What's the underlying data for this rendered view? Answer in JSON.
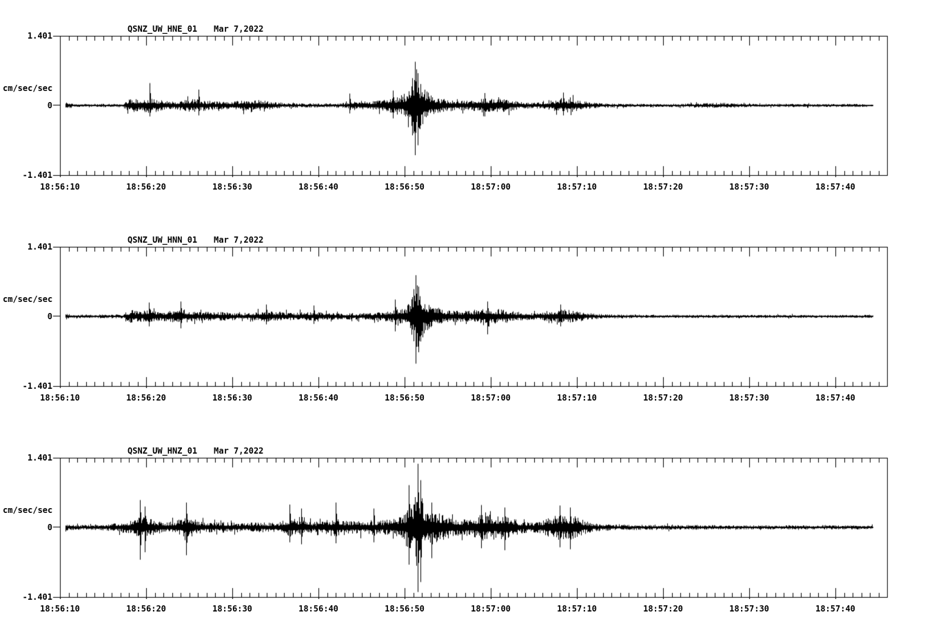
{
  "page": {
    "background_color": "#ffffff",
    "trace_color": "#000000",
    "description": "Three-channel strong-motion seismogram record, station QSNZ (UW network), event of Mar 7,2022 around 18:56:51"
  },
  "chart_data": [
    {
      "type": "line",
      "subtype": "seismogram",
      "station": "QSNZ_UW_HNE_01",
      "date": "Mar 7,2022",
      "title": "QSNZ_UW_HNE_01   Mar 7,2022",
      "y_axis": {
        "max": "1.401",
        "zero": "0",
        "min": "-1.401",
        "unit": "cm/sec/sec",
        "ylim": [
          -1.401,
          1.401
        ]
      },
      "x_axis": {
        "ticks": [
          "18:56:10",
          "18:56:20",
          "18:56:30",
          "18:56:40",
          "18:56:50",
          "18:57:00",
          "18:57:10",
          "18:57:20",
          "18:57:30",
          "18:57:40"
        ],
        "start": "18:56:10",
        "end_approx": "18:57:46",
        "major_tick_interval_s": 10,
        "minor_tick_interval_s": 1
      },
      "main_event": {
        "time": "18:56:51",
        "peak_up": 0.88,
        "peak_down": -1.0
      },
      "seed": 11,
      "envelope_breakpoints": [
        [
          0,
          0.07
        ],
        [
          0.9,
          0.07
        ],
        [
          1.6,
          0.03
        ],
        [
          7.2,
          0.035
        ],
        [
          8,
          0.14
        ],
        [
          9,
          0.13
        ],
        [
          10.3,
          0.16
        ],
        [
          11.5,
          0.12
        ],
        [
          12.6,
          0.1
        ],
        [
          13.6,
          0.09
        ],
        [
          14.6,
          0.12
        ],
        [
          15.8,
          0.13
        ],
        [
          17,
          0.1
        ],
        [
          18.4,
          0.08
        ],
        [
          20,
          0.08
        ],
        [
          21,
          0.11
        ],
        [
          22,
          0.09
        ],
        [
          23,
          0.11
        ],
        [
          24,
          0.09
        ],
        [
          25,
          0.07
        ],
        [
          26,
          0.05
        ],
        [
          28,
          0.042
        ],
        [
          31,
          0.04
        ],
        [
          33,
          0.05
        ],
        [
          34,
          0.07
        ],
        [
          35,
          0.1
        ],
        [
          36,
          0.09
        ],
        [
          37,
          0.11
        ],
        [
          38,
          0.13
        ],
        [
          39,
          0.17
        ],
        [
          40,
          0.24
        ],
        [
          40.8,
          0.42
        ],
        [
          41.2,
          0.8
        ],
        [
          41.7,
          0.5
        ],
        [
          42.3,
          0.32
        ],
        [
          43,
          0.24
        ],
        [
          44,
          0.15
        ],
        [
          45,
          0.12
        ],
        [
          46.2,
          0.1
        ],
        [
          47.5,
          0.1
        ],
        [
          48.5,
          0.13
        ],
        [
          49.5,
          0.16
        ],
        [
          50.5,
          0.14
        ],
        [
          51.5,
          0.14
        ],
        [
          52.3,
          0.11
        ],
        [
          53.2,
          0.08
        ],
        [
          54.5,
          0.06
        ],
        [
          56,
          0.07
        ],
        [
          57,
          0.1
        ],
        [
          58,
          0.15
        ],
        [
          59,
          0.14
        ],
        [
          60.2,
          0.11
        ],
        [
          61.2,
          0.07
        ],
        [
          62.5,
          0.05
        ],
        [
          64,
          0.04
        ],
        [
          66,
          0.035
        ],
        [
          70,
          0.03
        ],
        [
          76,
          0.05
        ],
        [
          77.5,
          0.055
        ],
        [
          79,
          0.038
        ],
        [
          81,
          0.03
        ],
        [
          84.5,
          0.035
        ],
        [
          88,
          0.03
        ],
        [
          91,
          0.032
        ],
        [
          94.3,
          0.03
        ]
      ],
      "spikes": [
        [
          10.4,
          0.45,
          -0.22
        ],
        [
          16.1,
          0.32,
          -0.2
        ],
        [
          33.6,
          0.24,
          -0.16
        ],
        [
          38.6,
          0.3,
          -0.26
        ],
        [
          40.9,
          0.55,
          -0.6
        ],
        [
          41.2,
          0.88,
          -1.0
        ],
        [
          41.5,
          0.65,
          -0.8
        ],
        [
          49.3,
          0.25,
          -0.22
        ],
        [
          58.4,
          0.26,
          -0.2
        ]
      ]
    },
    {
      "type": "line",
      "subtype": "seismogram",
      "station": "QSNZ_UW_HNN_01",
      "date": "Mar 7,2022",
      "title": "QSNZ_UW_HNN_01   Mar 7,2022",
      "y_axis": {
        "max": "1.401",
        "zero": "0",
        "min": "-1.401",
        "unit": "cm/sec/sec",
        "ylim": [
          -1.401,
          1.401
        ]
      },
      "x_axis": {
        "ticks": [
          "18:56:10",
          "18:56:20",
          "18:56:30",
          "18:56:40",
          "18:56:50",
          "18:57:00",
          "18:57:10",
          "18:57:20",
          "18:57:30",
          "18:57:40"
        ],
        "start": "18:56:10",
        "end_approx": "18:57:46",
        "major_tick_interval_s": 10,
        "minor_tick_interval_s": 1
      },
      "main_event": {
        "time": "18:56:51",
        "peak_up": 0.83,
        "peak_down": -0.95
      },
      "seed": 22,
      "envelope_breakpoints": [
        [
          0,
          0.07
        ],
        [
          0.9,
          0.065
        ],
        [
          1.7,
          0.035
        ],
        [
          7.3,
          0.04
        ],
        [
          8.2,
          0.13
        ],
        [
          9.5,
          0.12
        ],
        [
          10.5,
          0.13
        ],
        [
          11.5,
          0.1
        ],
        [
          12.8,
          0.11
        ],
        [
          13.8,
          0.14
        ],
        [
          15,
          0.11
        ],
        [
          16.2,
          0.09
        ],
        [
          17.3,
          0.1
        ],
        [
          18.5,
          0.1
        ],
        [
          19.5,
          0.08
        ],
        [
          21,
          0.07
        ],
        [
          22.5,
          0.08
        ],
        [
          23.5,
          0.11
        ],
        [
          24.8,
          0.1
        ],
        [
          26,
          0.09
        ],
        [
          27,
          0.07
        ],
        [
          28.2,
          0.09
        ],
        [
          29.3,
          0.1
        ],
        [
          30.5,
          0.08
        ],
        [
          31.5,
          0.07
        ],
        [
          33,
          0.06
        ],
        [
          35,
          0.065
        ],
        [
          36.5,
          0.08
        ],
        [
          37.5,
          0.09
        ],
        [
          38.5,
          0.12
        ],
        [
          39.5,
          0.16
        ],
        [
          40.3,
          0.22
        ],
        [
          40.9,
          0.4
        ],
        [
          41.3,
          0.75
        ],
        [
          41.8,
          0.48
        ],
        [
          42.4,
          0.32
        ],
        [
          43.2,
          0.24
        ],
        [
          44.2,
          0.16
        ],
        [
          45.2,
          0.13
        ],
        [
          46.5,
          0.11
        ],
        [
          47.8,
          0.12
        ],
        [
          48.8,
          0.17
        ],
        [
          49.8,
          0.17
        ],
        [
          50.8,
          0.15
        ],
        [
          51.8,
          0.13
        ],
        [
          52.6,
          0.11
        ],
        [
          53.5,
          0.08
        ],
        [
          55,
          0.07
        ],
        [
          56.2,
          0.09
        ],
        [
          57.2,
          0.12
        ],
        [
          58.2,
          0.14
        ],
        [
          59.2,
          0.13
        ],
        [
          60.3,
          0.1
        ],
        [
          61.3,
          0.07
        ],
        [
          62.5,
          0.05
        ],
        [
          64.5,
          0.04
        ],
        [
          67,
          0.035
        ],
        [
          71,
          0.03
        ],
        [
          75,
          0.035
        ],
        [
          79,
          0.03
        ],
        [
          83,
          0.032
        ],
        [
          87,
          0.03
        ],
        [
          91,
          0.03
        ],
        [
          94.3,
          0.03
        ]
      ],
      "spikes": [
        [
          10.3,
          0.28,
          -0.2
        ],
        [
          14,
          0.3,
          -0.24
        ],
        [
          23.9,
          0.24,
          -0.16
        ],
        [
          29.4,
          0.22,
          -0.15
        ],
        [
          38.9,
          0.34,
          -0.3
        ],
        [
          41,
          0.55,
          -0.5
        ],
        [
          41.3,
          0.83,
          -0.95
        ],
        [
          41.6,
          0.6,
          -0.72
        ],
        [
          49.6,
          0.3,
          -0.36
        ],
        [
          58.1,
          0.24,
          -0.2
        ]
      ]
    },
    {
      "type": "line",
      "subtype": "seismogram",
      "station": "QSNZ_UW_HNZ_01",
      "date": "Mar 7,2022",
      "title": "QSNZ_UW_HNZ_01   Mar 7,2022",
      "y_axis": {
        "max": "1.401",
        "zero": "0",
        "min": "-1.401",
        "unit": "cm/sec/sec",
        "ylim": [
          -1.401,
          1.401
        ]
      },
      "x_axis": {
        "ticks": [
          "18:56:10",
          "18:56:20",
          "18:56:30",
          "18:56:40",
          "18:56:50",
          "18:57:00",
          "18:57:10",
          "18:57:20",
          "18:57:30",
          "18:57:40"
        ],
        "start": "18:56:10",
        "end_approx": "18:57:46",
        "major_tick_interval_s": 10,
        "minor_tick_interval_s": 1
      },
      "main_event": {
        "time": "18:56:51",
        "peak_up": 1.28,
        "peak_down": -1.3
      },
      "seed": 33,
      "envelope_breakpoints": [
        [
          0,
          0.08
        ],
        [
          1,
          0.06
        ],
        [
          2.2,
          0.05
        ],
        [
          4,
          0.05
        ],
        [
          5,
          0.065
        ],
        [
          6.2,
          0.08
        ],
        [
          7.2,
          0.1
        ],
        [
          8.2,
          0.13
        ],
        [
          9,
          0.2
        ],
        [
          9.6,
          0.24
        ],
        [
          10.4,
          0.18
        ],
        [
          11.2,
          0.13
        ],
        [
          12.2,
          0.11
        ],
        [
          13.4,
          0.13
        ],
        [
          14.3,
          0.2
        ],
        [
          14.9,
          0.26
        ],
        [
          15.6,
          0.17
        ],
        [
          16.4,
          0.12
        ],
        [
          17.5,
          0.1
        ],
        [
          18.5,
          0.11
        ],
        [
          19.5,
          0.1
        ],
        [
          20.5,
          0.1
        ],
        [
          21.5,
          0.09
        ],
        [
          22.5,
          0.1
        ],
        [
          23.5,
          0.1
        ],
        [
          24.5,
          0.09
        ],
        [
          25.4,
          0.11
        ],
        [
          26.2,
          0.17
        ],
        [
          27,
          0.19
        ],
        [
          27.8,
          0.16
        ],
        [
          28.6,
          0.12
        ],
        [
          29.5,
          0.11
        ],
        [
          30.5,
          0.13
        ],
        [
          31.5,
          0.17
        ],
        [
          32.2,
          0.17
        ],
        [
          33,
          0.13
        ],
        [
          34,
          0.14
        ],
        [
          35,
          0.13
        ],
        [
          36,
          0.15
        ],
        [
          37,
          0.14
        ],
        [
          38,
          0.16
        ],
        [
          39,
          0.19
        ],
        [
          40,
          0.26
        ],
        [
          40.6,
          0.42
        ],
        [
          41.2,
          0.68
        ],
        [
          41.6,
          0.95
        ],
        [
          42.1,
          0.5
        ],
        [
          42.7,
          0.38
        ],
        [
          43.5,
          0.32
        ],
        [
          44.5,
          0.26
        ],
        [
          45.5,
          0.21
        ],
        [
          46.5,
          0.17
        ],
        [
          47.5,
          0.17
        ],
        [
          48.4,
          0.23
        ],
        [
          49,
          0.28
        ],
        [
          50,
          0.25
        ],
        [
          51,
          0.24
        ],
        [
          51.8,
          0.26
        ],
        [
          52.5,
          0.2
        ],
        [
          53.3,
          0.13
        ],
        [
          54.5,
          0.1
        ],
        [
          55.8,
          0.12
        ],
        [
          56.8,
          0.2
        ],
        [
          57.8,
          0.25
        ],
        [
          58.8,
          0.26
        ],
        [
          59.8,
          0.22
        ],
        [
          60.8,
          0.14
        ],
        [
          61.8,
          0.09
        ],
        [
          63,
          0.07
        ],
        [
          64.5,
          0.06
        ],
        [
          66.5,
          0.055
        ],
        [
          69,
          0.05
        ],
        [
          72,
          0.046
        ],
        [
          75,
          0.05
        ],
        [
          78,
          0.042
        ],
        [
          81,
          0.04
        ],
        [
          84,
          0.044
        ],
        [
          87,
          0.04
        ],
        [
          90,
          0.04
        ],
        [
          94.3,
          0.04
        ]
      ],
      "spikes": [
        [
          9.3,
          0.55,
          -0.65
        ],
        [
          9.8,
          0.42,
          -0.5
        ],
        [
          14.6,
          0.5,
          -0.56
        ],
        [
          26.6,
          0.46,
          -0.3
        ],
        [
          28,
          0.38,
          -0.34
        ],
        [
          32,
          0.5,
          -0.32
        ],
        [
          36.4,
          0.38,
          -0.3
        ],
        [
          40.5,
          0.85,
          -0.75
        ],
        [
          41.5,
          1.28,
          -1.3
        ],
        [
          41.8,
          0.95,
          -1.1
        ],
        [
          43.1,
          0.5,
          -0.62
        ],
        [
          48.9,
          0.45,
          -0.42
        ],
        [
          51.6,
          0.4,
          -0.46
        ],
        [
          58,
          0.44,
          -0.4
        ],
        [
          59.2,
          0.4,
          -0.44
        ]
      ]
    }
  ]
}
